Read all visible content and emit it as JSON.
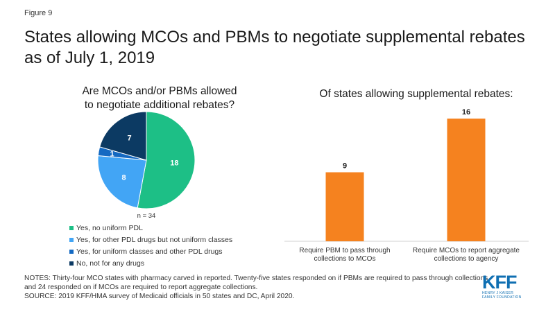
{
  "figure_label": "Figure 9",
  "title": "States allowing MCOs and PBMs to negotiate supplemental rebates as of July 1, 2019",
  "chart_data": [
    {
      "type": "pie",
      "title": "Are MCOs and/or PBMs allowed to negotiate additional rebates?",
      "note": "n = 34",
      "slices": [
        {
          "label": "Yes, no uniform PDL",
          "value": 18,
          "color": "#1dbf86"
        },
        {
          "label": "Yes, for other PDL drugs but not uniform classes",
          "value": 8,
          "color": "#42a5f5"
        },
        {
          "label": "Yes, for uniform classes and other PDL drugs",
          "value": 1,
          "color": "#1469c2"
        },
        {
          "label": "No, not for any drugs",
          "value": 7,
          "color": "#0c3a63"
        }
      ],
      "legend_position": "bottom"
    },
    {
      "type": "bar",
      "title": "Of states allowing supplemental rebates:",
      "categories": [
        "Require PBM to pass through collections to MCOs",
        "Require MCOs to report aggregate collections to agency"
      ],
      "category_lines": [
        [
          "Require PBM to pass through",
          "collections to MCOs"
        ],
        [
          "Require MCOs to report aggregate",
          "collections to agency"
        ]
      ],
      "values": [
        9,
        16
      ],
      "color": "#f5821f",
      "ylim": [
        0,
        17
      ]
    }
  ],
  "notes": [
    "NOTES: Thirty-four  MCO states with pharmacy carved in reported. Twenty-five  states responded on if PBMs are required to pass through  collections",
    "and 24 responded on if MCOs are required to report aggregate collections.",
    "SOURCE: 2019 KFF/HMA survey  of Medicaid officials in 50 states and DC, April 2020."
  ],
  "logo": {
    "word": "KFF",
    "sub": [
      "HENRY J KAISER",
      "FAMILY FOUNDATION"
    ],
    "color": "#0f6fb2"
  }
}
